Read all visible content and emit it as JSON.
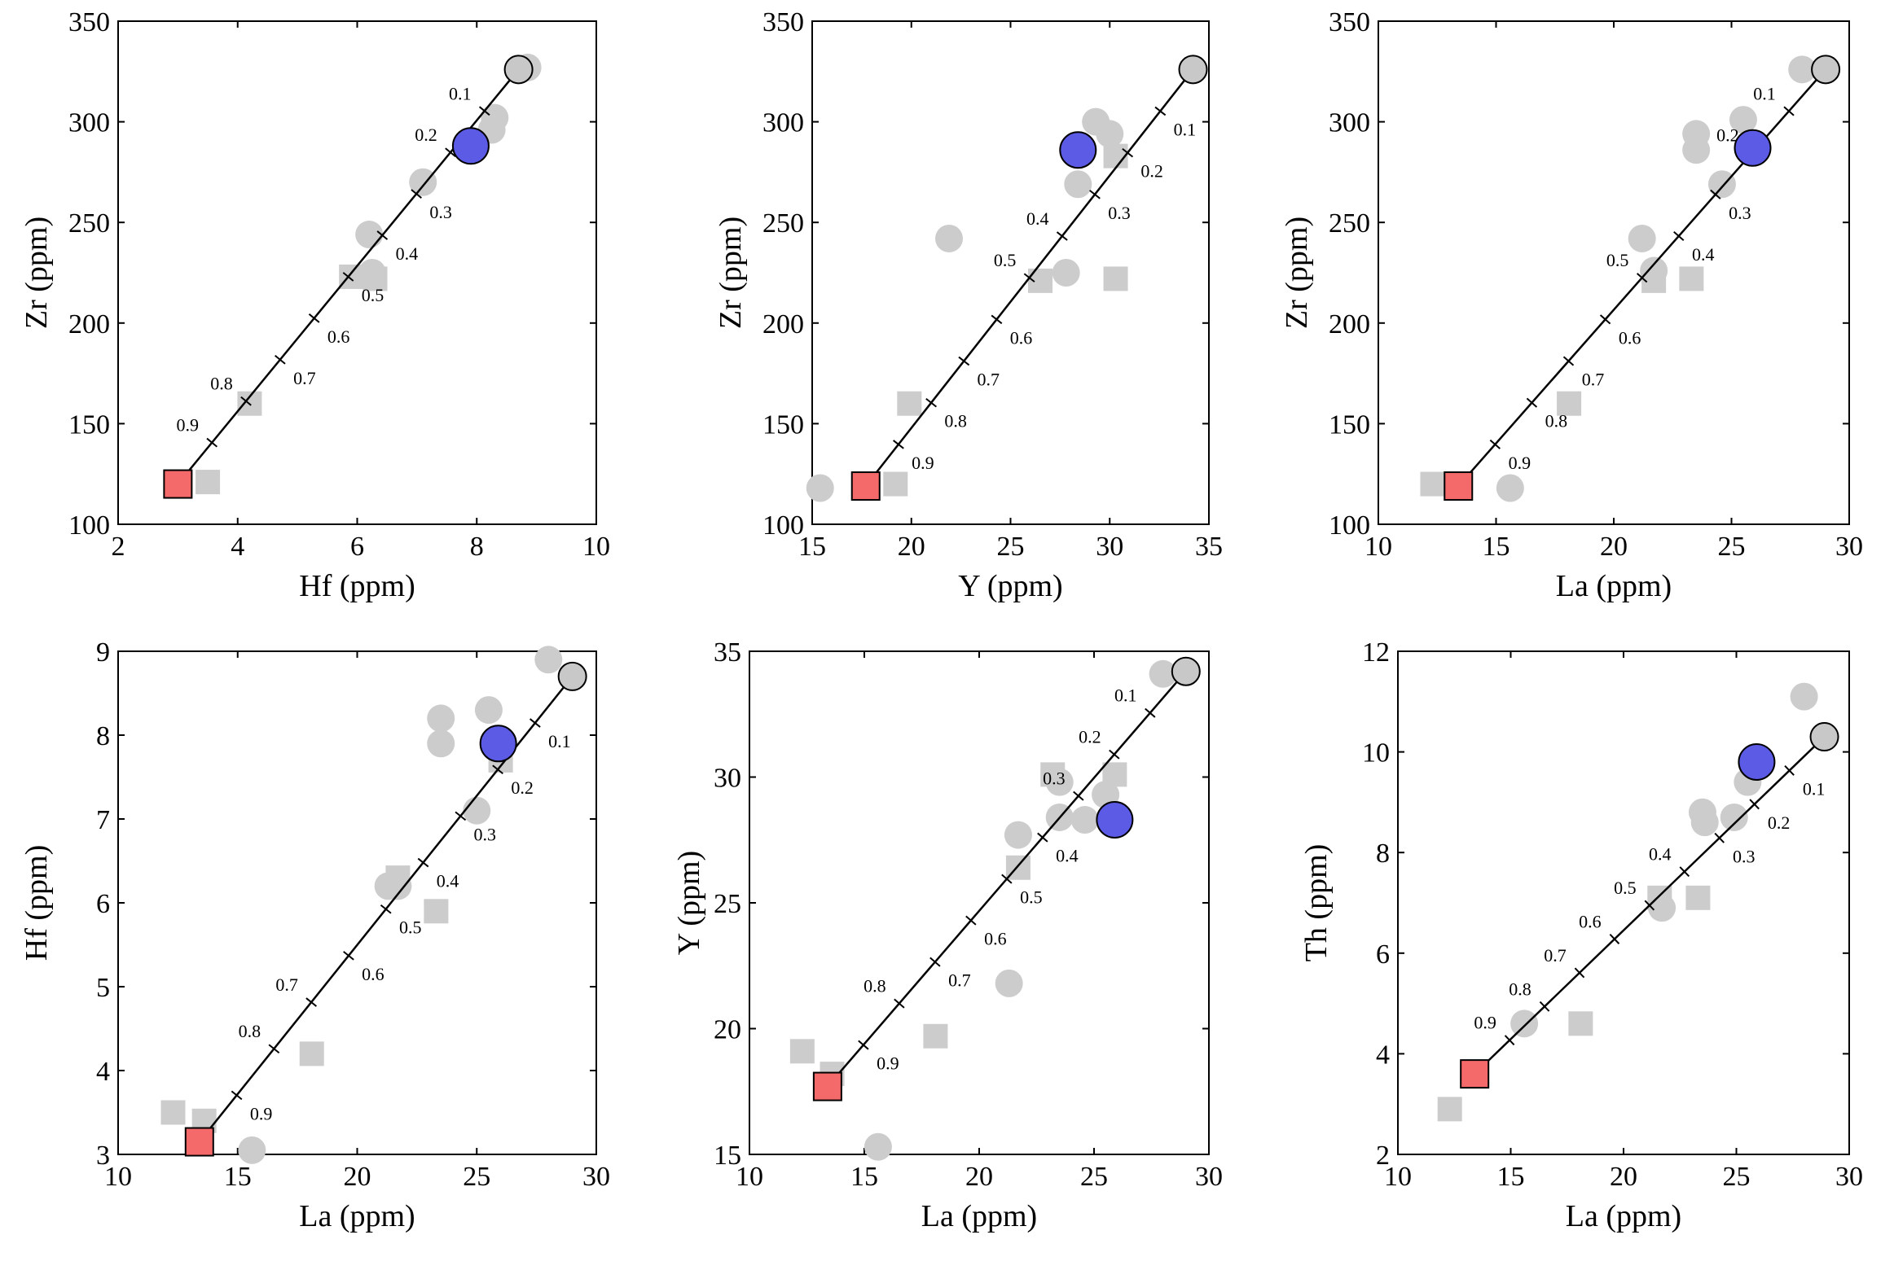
{
  "colors": {
    "samples": "#cccccc",
    "endmember_low": "#f46a6a",
    "endmember_high": "#c8c8c8",
    "target": "#5b5be6",
    "line": "#000000"
  },
  "chart_data": [
    {
      "type": "scatter",
      "xlabel": "Hf (ppm)",
      "ylabel": "Zr (ppm)",
      "xlim": [
        2,
        10
      ],
      "ylim": [
        100,
        350
      ],
      "xticks": [
        2,
        4,
        6,
        8,
        10
      ],
      "yticks": [
        100,
        150,
        200,
        250,
        300,
        350
      ],
      "mixing_line": {
        "start": [
          3.0,
          120
        ],
        "end": [
          8.7,
          326
        ],
        "fractions": [
          "0.9",
          "0.8",
          "0.7",
          "0.6",
          "0.5",
          "0.4",
          "0.3",
          "0.2",
          "0.1"
        ],
        "label_sides": [
          -1,
          -1,
          1,
          1,
          1,
          1,
          1,
          -1,
          -1
        ]
      },
      "samples_circles": [
        [
          8.85,
          327
        ],
        [
          8.3,
          302
        ],
        [
          8.25,
          296
        ],
        [
          7.1,
          270
        ],
        [
          6.2,
          244
        ],
        [
          6.25,
          225
        ]
      ],
      "samples_squares": [
        [
          3.5,
          121
        ],
        [
          4.2,
          160
        ],
        [
          5.9,
          223
        ],
        [
          6.3,
          222
        ]
      ],
      "endmember_low": [
        3.0,
        120
      ],
      "endmember_high": [
        8.7,
        326
      ],
      "target": [
        7.9,
        288
      ]
    },
    {
      "type": "scatter",
      "xlabel": "Y (ppm)",
      "ylabel": "Zr (ppm)",
      "xlim": [
        15,
        35
      ],
      "ylim": [
        100,
        350
      ],
      "xticks": [
        15,
        20,
        25,
        30,
        35
      ],
      "yticks": [
        100,
        150,
        200,
        250,
        300,
        350
      ],
      "mixing_line": {
        "start": [
          17.7,
          119
        ],
        "end": [
          34.2,
          326
        ],
        "fractions": [
          "0.9",
          "0.8",
          "0.7",
          "0.6",
          "0.5",
          "0.4",
          "0.3",
          "0.2",
          "0.1"
        ],
        "label_sides": [
          1,
          1,
          1,
          1,
          -1,
          -1,
          1,
          1,
          1
        ]
      },
      "samples_circles": [
        [
          15.4,
          118
        ],
        [
          21.9,
          242
        ],
        [
          27.8,
          225
        ],
        [
          28.4,
          269
        ],
        [
          29.3,
          300
        ],
        [
          30.0,
          294
        ]
      ],
      "samples_squares": [
        [
          19.2,
          120
        ],
        [
          19.9,
          160
        ],
        [
          26.5,
          221
        ],
        [
          30.3,
          222
        ],
        [
          30.3,
          283
        ]
      ],
      "endmember_low": [
        17.7,
        119
      ],
      "endmember_high": [
        34.2,
        326
      ],
      "target": [
        28.4,
        286
      ]
    },
    {
      "type": "scatter",
      "xlabel": "La (ppm)",
      "ylabel": "Zr (ppm)",
      "xlim": [
        10,
        30
      ],
      "ylim": [
        100,
        350
      ],
      "xticks": [
        10,
        15,
        20,
        25,
        30
      ],
      "yticks": [
        100,
        150,
        200,
        250,
        300,
        350
      ],
      "mixing_line": {
        "start": [
          13.4,
          119
        ],
        "end": [
          29.0,
          326
        ],
        "fractions": [
          "0.9",
          "0.8",
          "0.7",
          "0.6",
          "0.5",
          "0.4",
          "0.3",
          "0.2",
          "0.1"
        ],
        "label_sides": [
          1,
          1,
          1,
          1,
          -1,
          1,
          1,
          -1,
          -1
        ]
      },
      "samples_circles": [
        [
          15.6,
          118
        ],
        [
          21.2,
          242
        ],
        [
          21.7,
          226
        ],
        [
          23.5,
          294
        ],
        [
          23.5,
          286
        ],
        [
          24.6,
          269
        ],
        [
          25.5,
          301
        ],
        [
          28.0,
          326
        ]
      ],
      "samples_squares": [
        [
          12.3,
          120
        ],
        [
          18.1,
          160
        ],
        [
          21.7,
          221
        ],
        [
          23.3,
          222
        ]
      ],
      "endmember_low": [
        13.4,
        119
      ],
      "endmember_high": [
        29.0,
        326
      ],
      "target": [
        25.9,
        287
      ]
    },
    {
      "type": "scatter",
      "xlabel": "La (ppm)",
      "ylabel": "Hf (ppm)",
      "xlim": [
        10,
        30
      ],
      "ylim": [
        3,
        9
      ],
      "xticks": [
        10,
        15,
        20,
        25,
        30
      ],
      "yticks": [
        3,
        4,
        5,
        6,
        7,
        8,
        9
      ],
      "mixing_line": {
        "start": [
          13.4,
          3.15
        ],
        "end": [
          29.0,
          8.7
        ],
        "fractions": [
          "0.9",
          "0.8",
          "0.7",
          "0.6",
          "0.5",
          "0.4",
          "0.3",
          "0.2",
          "0.1"
        ],
        "label_sides": [
          1,
          -1,
          -1,
          1,
          1,
          1,
          1,
          1,
          1
        ]
      },
      "samples_circles": [
        [
          15.6,
          3.05
        ],
        [
          21.3,
          6.2
        ],
        [
          21.7,
          6.2
        ],
        [
          23.5,
          8.2
        ],
        [
          23.5,
          7.9
        ],
        [
          25.0,
          7.1
        ],
        [
          25.5,
          8.3
        ],
        [
          28.0,
          8.9
        ]
      ],
      "samples_squares": [
        [
          12.3,
          3.5
        ],
        [
          13.6,
          3.4
        ],
        [
          18.1,
          4.2
        ],
        [
          21.7,
          6.3
        ],
        [
          23.3,
          5.9
        ],
        [
          26.0,
          7.7
        ]
      ],
      "endmember_low": [
        13.4,
        3.15
      ],
      "endmember_high": [
        29.0,
        8.7
      ],
      "target": [
        25.9,
        7.9
      ]
    },
    {
      "type": "scatter",
      "xlabel": "La (ppm)",
      "ylabel": "Y (ppm)",
      "xlim": [
        10,
        30
      ],
      "ylim": [
        15,
        35
      ],
      "xticks": [
        10,
        15,
        20,
        25,
        30
      ],
      "yticks": [
        15,
        20,
        25,
        30,
        35
      ],
      "mixing_line": {
        "start": [
          13.4,
          17.7
        ],
        "end": [
          29.0,
          34.2
        ],
        "fractions": [
          "0.9",
          "0.8",
          "0.7",
          "0.6",
          "0.5",
          "0.4",
          "0.3",
          "0.2",
          "0.1"
        ],
        "label_sides": [
          1,
          -1,
          1,
          1,
          1,
          1,
          -1,
          -1,
          -1
        ]
      },
      "samples_circles": [
        [
          15.6,
          15.3
        ],
        [
          21.3,
          21.8
        ],
        [
          21.7,
          27.7
        ],
        [
          23.5,
          28.4
        ],
        [
          23.5,
          29.8
        ],
        [
          24.6,
          28.3
        ],
        [
          25.5,
          29.3
        ],
        [
          28.0,
          34.1
        ]
      ],
      "samples_squares": [
        [
          12.3,
          19.1
        ],
        [
          13.6,
          18.2
        ],
        [
          18.1,
          19.7
        ],
        [
          21.7,
          26.4
        ],
        [
          23.2,
          30.1
        ],
        [
          25.9,
          30.1
        ]
      ],
      "endmember_low": [
        13.4,
        17.7
      ],
      "endmember_high": [
        29.0,
        34.2
      ],
      "target": [
        25.9,
        28.3
      ]
    },
    {
      "type": "scatter",
      "xlabel": "La (ppm)",
      "ylabel": "Th (ppm)",
      "xlim": [
        10,
        30
      ],
      "ylim": [
        2,
        12
      ],
      "xticks": [
        10,
        15,
        20,
        25,
        30
      ],
      "yticks": [
        2,
        4,
        6,
        8,
        10,
        12
      ],
      "mixing_line": {
        "start": [
          13.4,
          3.6
        ],
        "end": [
          28.9,
          10.3
        ],
        "fractions": [
          "0.9",
          "0.8",
          "0.7",
          "0.6",
          "0.5",
          "0.4",
          "0.3",
          "0.2",
          "0.1"
        ],
        "label_sides": [
          -1,
          -1,
          -1,
          -1,
          -1,
          -1,
          1,
          1,
          1
        ]
      },
      "samples_circles": [
        [
          15.6,
          4.6
        ],
        [
          21.7,
          6.9
        ],
        [
          23.5,
          8.8
        ],
        [
          23.6,
          8.6
        ],
        [
          24.9,
          8.7
        ],
        [
          25.5,
          9.4
        ],
        [
          28.0,
          11.1
        ]
      ],
      "samples_squares": [
        [
          12.3,
          2.9
        ],
        [
          18.1,
          4.6
        ],
        [
          21.6,
          7.1
        ],
        [
          23.3,
          7.1
        ]
      ],
      "endmember_low": [
        13.4,
        3.6
      ],
      "endmember_high": [
        28.9,
        10.3
      ],
      "target": [
        25.9,
        9.8
      ]
    }
  ]
}
